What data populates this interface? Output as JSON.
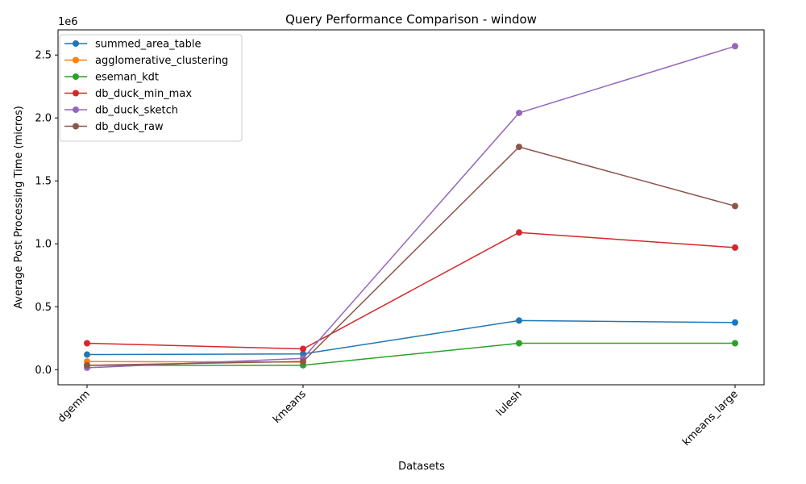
{
  "chart_data": {
    "type": "line",
    "title": "Query Performance Comparison - window",
    "xlabel": "Datasets",
    "ylabel": "Average Post Processing Time (micros)",
    "y_offset_label": "1e6",
    "categories": [
      "dgemm",
      "kmeans",
      "lulesh",
      "kmeans_large"
    ],
    "ylim": [
      -120000,
      2700000
    ],
    "yticks": [
      0,
      500000,
      1000000,
      1500000,
      2000000,
      2500000
    ],
    "ytick_labels": [
      "0.0",
      "0.5",
      "1.0",
      "1.5",
      "2.0",
      "2.5"
    ],
    "grid": false,
    "legend_position": "top-left",
    "series": [
      {
        "name": "summed_area_table",
        "color": "#1f77b4",
        "values": [
          120000,
          125000,
          390000,
          375000
        ]
      },
      {
        "name": "agglomerative_clustering",
        "color": "#ff7f0e",
        "values": [
          65000,
          60000,
          null,
          null
        ]
      },
      {
        "name": "eseman_kdt",
        "color": "#2ca02c",
        "values": [
          35000,
          35000,
          210000,
          210000
        ]
      },
      {
        "name": "db_duck_min_max",
        "color": "#d62728",
        "values": [
          210000,
          165000,
          1090000,
          970000
        ]
      },
      {
        "name": "db_duck_sketch",
        "color": "#9467bd",
        "values": [
          15000,
          90000,
          2040000,
          2570000
        ]
      },
      {
        "name": "db_duck_raw",
        "color": "#8c564b",
        "values": [
          35000,
          65000,
          1770000,
          1300000
        ]
      }
    ]
  }
}
